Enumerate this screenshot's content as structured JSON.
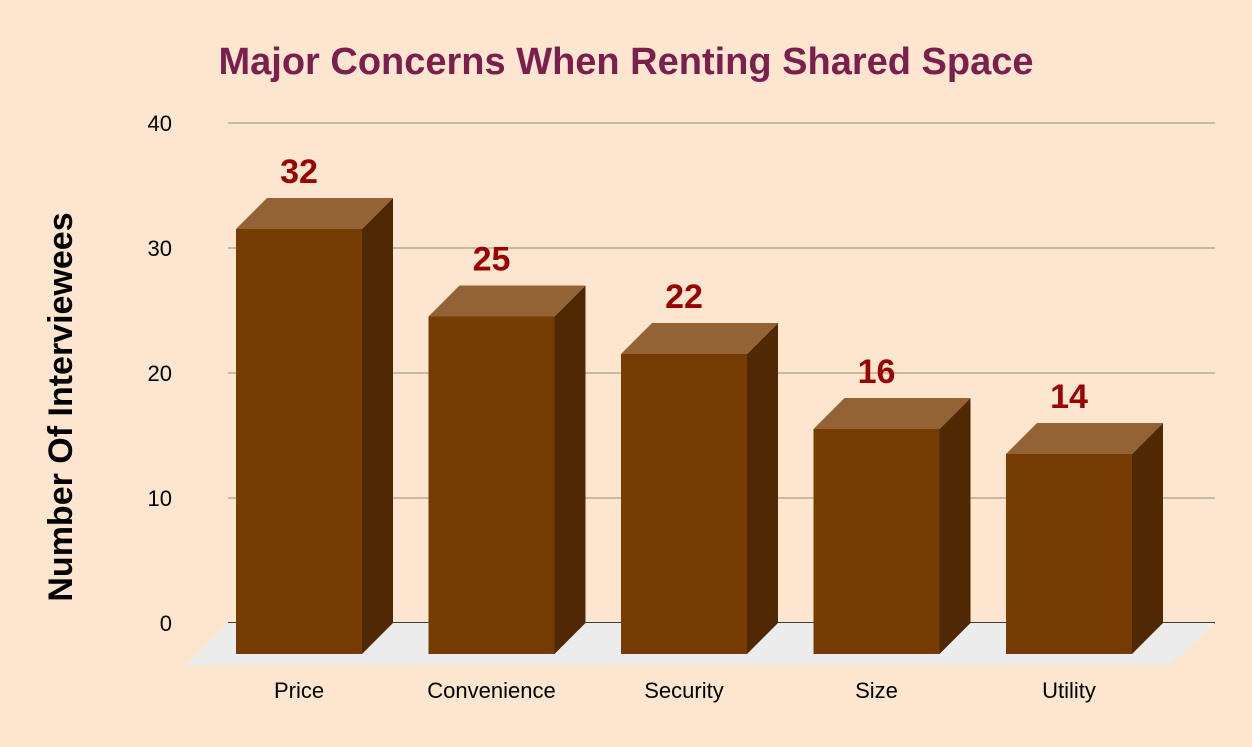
{
  "colors": {
    "background": "#fce6cf",
    "title": "#7b1f4e",
    "bar_front": "#773c04",
    "bar_top": "#946335",
    "bar_side": "#4f2804",
    "value_label": "#9a0000",
    "floor": "#ececec",
    "gridline": "#b7aa9a",
    "axis_text": "#000000"
  },
  "chart_data": {
    "type": "bar",
    "title": "Major Concerns When Renting Shared Space",
    "xlabel": "",
    "ylabel": "Number Of Interviewees",
    "categories": [
      "Price",
      "Convenience",
      "Security",
      "Size",
      "Utility"
    ],
    "values": [
      32,
      25,
      22,
      16,
      14
    ],
    "data_labels": [
      "32",
      "25",
      "22",
      "16",
      "14"
    ],
    "ylim": [
      0,
      40
    ],
    "yticks": [
      0,
      10,
      20,
      30,
      40
    ],
    "ytick_labels": [
      "0",
      "10",
      "20",
      "30",
      "40"
    ],
    "grid": true,
    "legend": "none",
    "style": "3d-column"
  }
}
